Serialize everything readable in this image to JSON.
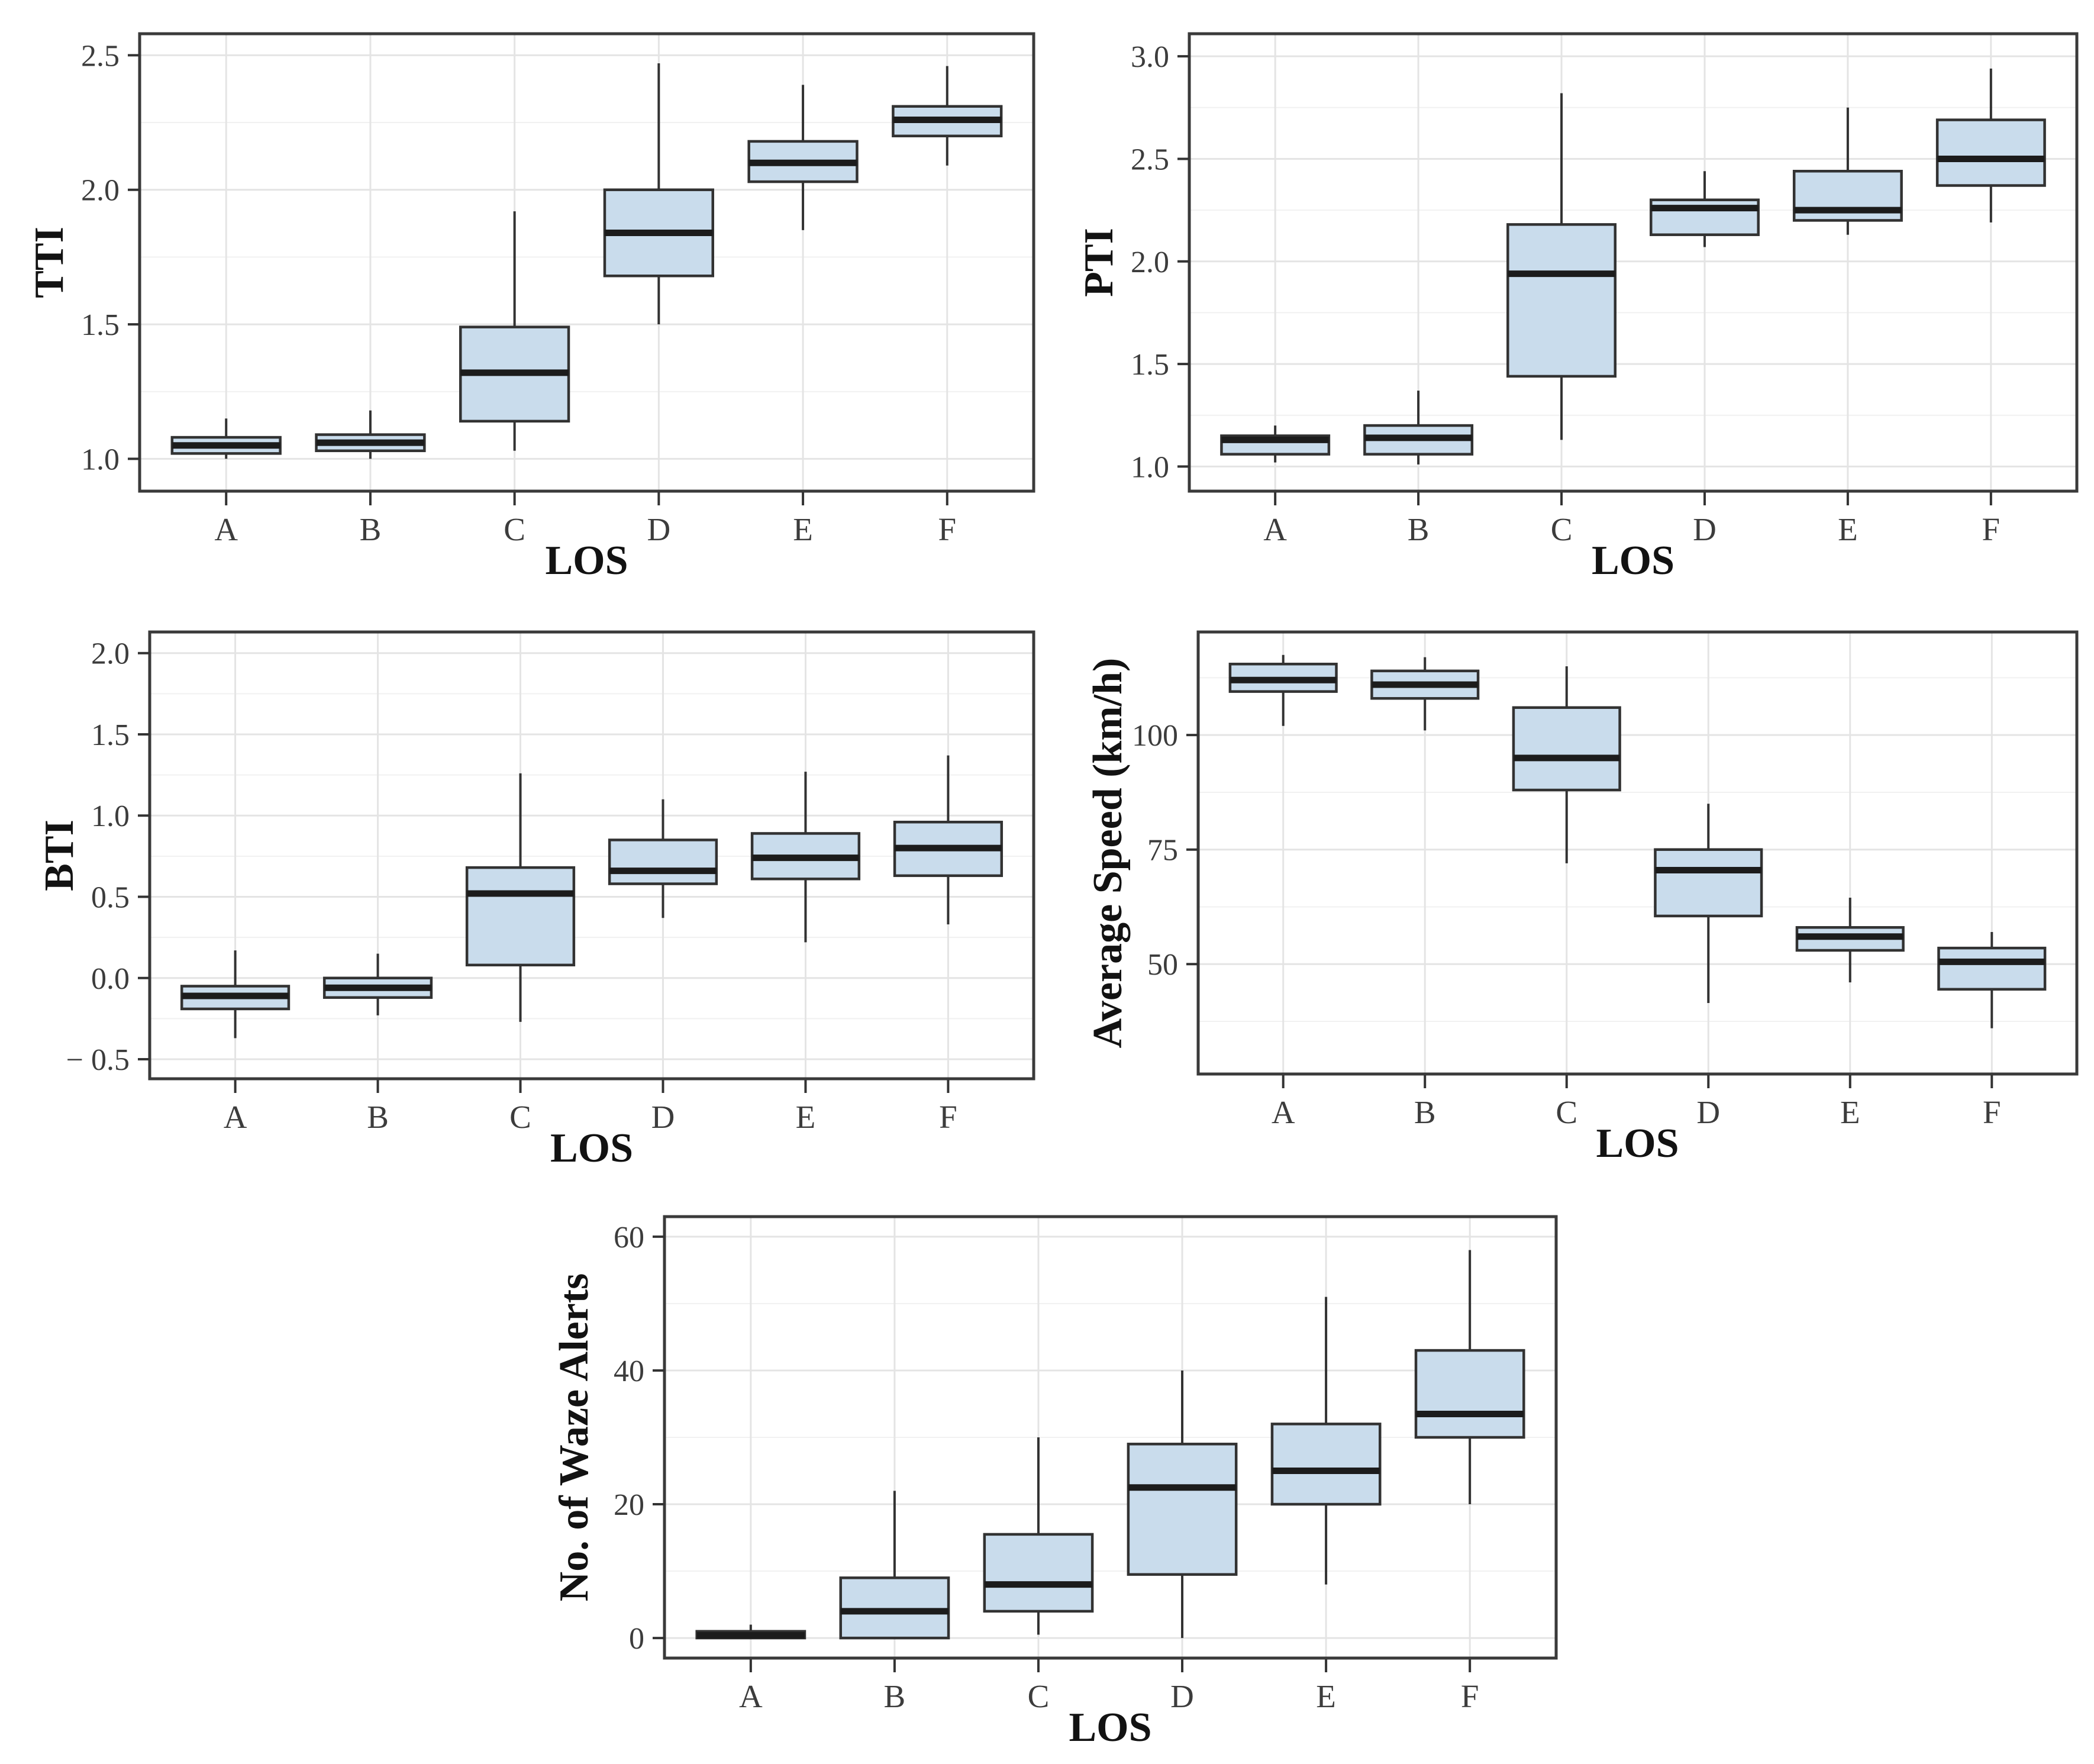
{
  "figure": {
    "background": "#ffffff",
    "categories": [
      "A",
      "B",
      "C",
      "D",
      "E",
      "F"
    ],
    "x_axis_title": "LOS",
    "styles": {
      "box_fill": "#c9dcec",
      "box_stroke": "#323232",
      "median_color": "#1c1c1c",
      "whisker_color": "#323232",
      "grid_major_color": "#e4e4e4",
      "grid_minor_color": "#f1f1f1",
      "panel_border_color": "#3a3a3a",
      "tick_mark_color": "#333333",
      "tick_label_color": "#3c3c3c",
      "axis_title_color": "#121212"
    }
  },
  "chart_data": [
    {
      "type": "box",
      "id": "tti",
      "ylabel": "TTI",
      "xlabel": "LOS",
      "categories": [
        "A",
        "B",
        "C",
        "D",
        "E",
        "F"
      ],
      "ylim": [
        0.88,
        2.58
      ],
      "yticks": [
        1.0,
        1.5,
        2.0,
        2.5
      ],
      "ytick_labels": [
        "1.0",
        "1.5",
        "2.0",
        "2.5"
      ],
      "yminor": [
        1.25,
        1.75,
        2.25
      ],
      "grid": true,
      "legend": false,
      "boxes": [
        {
          "category": "A",
          "whisker_low": 1.0,
          "q1": 1.02,
          "median": 1.05,
          "q3": 1.08,
          "whisker_high": 1.15
        },
        {
          "category": "B",
          "whisker_low": 1.0,
          "q1": 1.03,
          "median": 1.06,
          "q3": 1.09,
          "whisker_high": 1.18
        },
        {
          "category": "C",
          "whisker_low": 1.03,
          "q1": 1.14,
          "median": 1.32,
          "q3": 1.49,
          "whisker_high": 1.92
        },
        {
          "category": "D",
          "whisker_low": 1.5,
          "q1": 1.68,
          "median": 1.84,
          "q3": 2.0,
          "whisker_high": 2.47
        },
        {
          "category": "E",
          "whisker_low": 1.85,
          "q1": 2.03,
          "median": 2.1,
          "q3": 2.18,
          "whisker_high": 2.39
        },
        {
          "category": "F",
          "whisker_low": 2.09,
          "q1": 2.2,
          "median": 2.26,
          "q3": 2.31,
          "whisker_high": 2.46
        }
      ]
    },
    {
      "type": "box",
      "id": "pti",
      "ylabel": "PTI",
      "xlabel": "LOS",
      "categories": [
        "A",
        "B",
        "C",
        "D",
        "E",
        "F"
      ],
      "ylim": [
        0.88,
        3.11
      ],
      "yticks": [
        1.0,
        1.5,
        2.0,
        2.5,
        3.0
      ],
      "ytick_labels": [
        "1.0",
        "1.5",
        "2.0",
        "2.5",
        "3.0"
      ],
      "yminor": [
        1.25,
        1.75,
        2.25,
        2.75
      ],
      "grid": true,
      "legend": false,
      "boxes": [
        {
          "category": "A",
          "whisker_low": 1.02,
          "q1": 1.06,
          "median": 1.13,
          "q3": 1.15,
          "whisker_high": 1.2
        },
        {
          "category": "B",
          "whisker_low": 1.01,
          "q1": 1.06,
          "median": 1.14,
          "q3": 1.2,
          "whisker_high": 1.37
        },
        {
          "category": "C",
          "whisker_low": 1.13,
          "q1": 1.44,
          "median": 1.94,
          "q3": 2.18,
          "whisker_high": 2.82
        },
        {
          "category": "D",
          "whisker_low": 2.07,
          "q1": 2.13,
          "median": 2.26,
          "q3": 2.3,
          "whisker_high": 2.44
        },
        {
          "category": "E",
          "whisker_low": 2.13,
          "q1": 2.2,
          "median": 2.25,
          "q3": 2.44,
          "whisker_high": 2.75
        },
        {
          "category": "F",
          "whisker_low": 2.19,
          "q1": 2.37,
          "median": 2.5,
          "q3": 2.69,
          "whisker_high": 2.94
        }
      ]
    },
    {
      "type": "box",
      "id": "bti",
      "ylabel": "BTI",
      "xlabel": "LOS",
      "categories": [
        "A",
        "B",
        "C",
        "D",
        "E",
        "F"
      ],
      "ylim": [
        -0.62,
        2.13
      ],
      "yticks": [
        -0.5,
        0.0,
        0.5,
        1.0,
        1.5,
        2.0
      ],
      "ytick_labels": [
        "− 0.5",
        "0.0",
        "0.5",
        "1.0",
        "1.5",
        "2.0"
      ],
      "yminor": [
        -0.25,
        0.25,
        0.75,
        1.25,
        1.75
      ],
      "grid": true,
      "legend": false,
      "boxes": [
        {
          "category": "A",
          "whisker_low": -0.37,
          "q1": -0.19,
          "median": -0.11,
          "q3": -0.05,
          "whisker_high": 0.17
        },
        {
          "category": "B",
          "whisker_low": -0.23,
          "q1": -0.12,
          "median": -0.06,
          "q3": 0.0,
          "whisker_high": 0.15
        },
        {
          "category": "C",
          "whisker_low": -0.27,
          "q1": 0.08,
          "median": 0.52,
          "q3": 0.68,
          "whisker_high": 1.26
        },
        {
          "category": "D",
          "whisker_low": 0.37,
          "q1": 0.58,
          "median": 0.66,
          "q3": 0.85,
          "whisker_high": 1.1
        },
        {
          "category": "E",
          "whisker_low": 0.22,
          "q1": 0.61,
          "median": 0.74,
          "q3": 0.89,
          "whisker_high": 1.27
        },
        {
          "category": "F",
          "whisker_low": 0.33,
          "q1": 0.63,
          "median": 0.8,
          "q3": 0.96,
          "whisker_high": 1.37
        }
      ]
    },
    {
      "type": "box",
      "id": "avg-speed",
      "ylabel": "Average Speed (km/h)",
      "xlabel": "LOS",
      "categories": [
        "A",
        "B",
        "C",
        "D",
        "E",
        "F"
      ],
      "ylim": [
        26,
        122.5
      ],
      "yticks": [
        50,
        75,
        100
      ],
      "ytick_labels": [
        "50",
        "75",
        "100"
      ],
      "yminor": [
        37.5,
        62.5,
        87.5,
        112.5
      ],
      "grid": true,
      "legend": false,
      "boxes": [
        {
          "category": "A",
          "whisker_low": 102,
          "q1": 109.5,
          "median": 112,
          "q3": 115.5,
          "whisker_high": 117.5
        },
        {
          "category": "B",
          "whisker_low": 101,
          "q1": 108,
          "median": 111,
          "q3": 114,
          "whisker_high": 117
        },
        {
          "category": "C",
          "whisker_low": 72,
          "q1": 88,
          "median": 95,
          "q3": 106,
          "whisker_high": 115
        },
        {
          "category": "D",
          "whisker_low": 41.5,
          "q1": 60.5,
          "median": 70.5,
          "q3": 75,
          "whisker_high": 85
        },
        {
          "category": "E",
          "whisker_low": 46,
          "q1": 53,
          "median": 56,
          "q3": 58,
          "whisker_high": 64.5
        },
        {
          "category": "F",
          "whisker_low": 36,
          "q1": 44.5,
          "median": 50.5,
          "q3": 53.5,
          "whisker_high": 57
        }
      ]
    },
    {
      "type": "box",
      "id": "waze-alerts",
      "ylabel": "No. of Waze Alerts",
      "xlabel": "LOS",
      "categories": [
        "A",
        "B",
        "C",
        "D",
        "E",
        "F"
      ],
      "ylim": [
        -3,
        63
      ],
      "yticks": [
        0,
        20,
        40,
        60
      ],
      "ytick_labels": [
        "0",
        "20",
        "40",
        "60"
      ],
      "yminor": [
        10,
        30,
        50
      ],
      "grid": true,
      "legend": false,
      "boxes": [
        {
          "category": "A",
          "whisker_low": 0,
          "q1": 0,
          "median": 0.4,
          "q3": 1,
          "whisker_high": 2
        },
        {
          "category": "B",
          "whisker_low": 0,
          "q1": 0,
          "median": 4,
          "q3": 9,
          "whisker_high": 22
        },
        {
          "category": "C",
          "whisker_low": 0.5,
          "q1": 4,
          "median": 8,
          "q3": 15.5,
          "whisker_high": 30
        },
        {
          "category": "D",
          "whisker_low": 0,
          "q1": 9.5,
          "median": 22.5,
          "q3": 29,
          "whisker_high": 40
        },
        {
          "category": "E",
          "whisker_low": 8,
          "q1": 20,
          "median": 25,
          "q3": 32,
          "whisker_high": 51
        },
        {
          "category": "F",
          "whisker_low": 20,
          "q1": 30,
          "median": 33.5,
          "q3": 43,
          "whisker_high": 58
        }
      ]
    }
  ]
}
